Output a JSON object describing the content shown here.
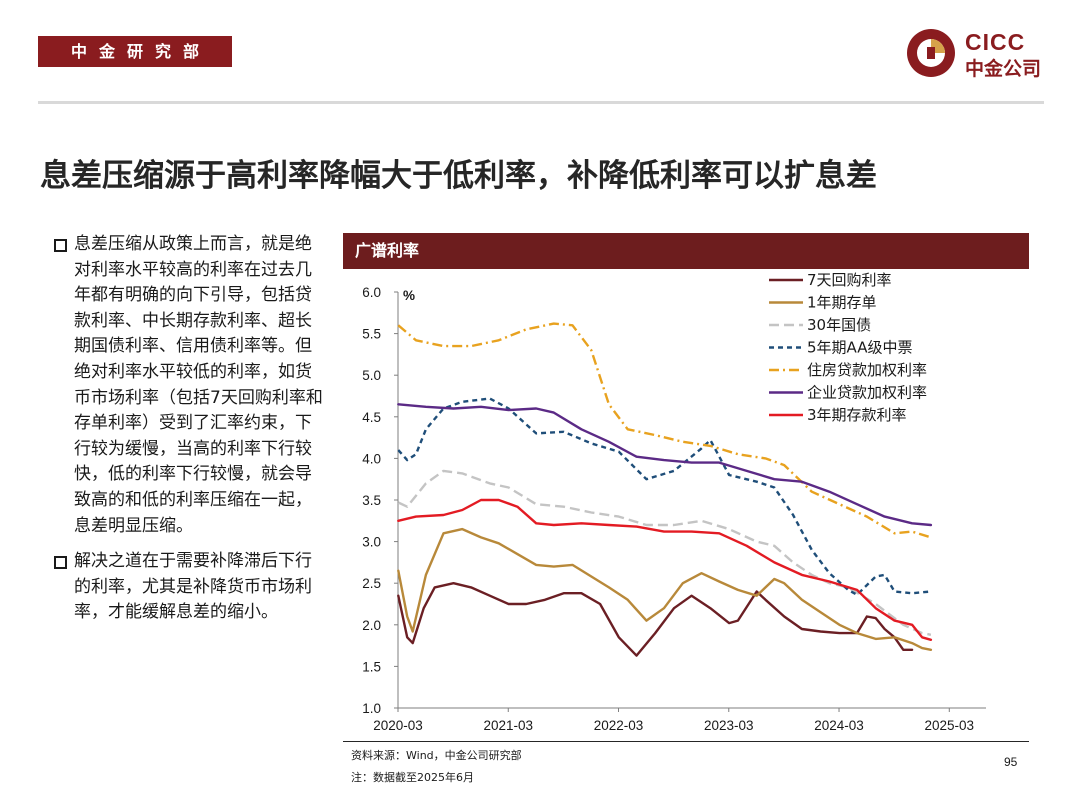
{
  "header": {
    "dept": "中金研究部",
    "logo_en": "CICC",
    "logo_cn": "中金公司",
    "logo_colors": {
      "primary": "#8a1c1f",
      "accent": "#d6a24a"
    }
  },
  "title": "息差压缩源于高利率降幅大于低利率，补降低利率可以扩息差",
  "bullets": [
    "息差压缩从政策上而言，就是绝对利率水平较高的利率在过去几年都有明确的向下引导，包括贷款利率、中长期存款利率、超长期国债利率、信用债利率等。但绝对利率水平较低的利率，如货币市场利率（包括7天回购利率和存单利率）受到了汇率约束，下行较为缓慢，当高的利率下行较快，低的利率下行较慢，就会导致高的和低的利率压缩在一起，息差明显压缩。",
    "解决之道在于需要补降滞后下行的利率，尤其是补降货币市场利率，才能缓解息差的缩小。"
  ],
  "chart_header": "广谱利率",
  "chart_data": {
    "type": "line",
    "ylabel": "%",
    "ylim": [
      1.0,
      6.0
    ],
    "yticks": [
      "1.0",
      "1.5",
      "2.0",
      "2.5",
      "3.0",
      "3.5",
      "4.0",
      "4.5",
      "5.0",
      "5.5",
      "6.0"
    ],
    "xlim": [
      2020.167,
      2025.5
    ],
    "xticks": [
      {
        "x": 2020.167,
        "label": "2020-03"
      },
      {
        "x": 2021.167,
        "label": "2021-03"
      },
      {
        "x": 2022.167,
        "label": "2022-03"
      },
      {
        "x": 2023.167,
        "label": "2023-03"
      },
      {
        "x": 2024.167,
        "label": "2024-03"
      },
      {
        "x": 2025.167,
        "label": "2025-03"
      }
    ],
    "legend_position": "top-right",
    "series": [
      {
        "name": "7天回购利率",
        "color": "#6b1f24",
        "dash": "solid",
        "points": [
          [
            2020.17,
            2.35
          ],
          [
            2020.25,
            1.85
          ],
          [
            2020.3,
            1.78
          ],
          [
            2020.4,
            2.2
          ],
          [
            2020.5,
            2.45
          ],
          [
            2020.67,
            2.5
          ],
          [
            2020.83,
            2.45
          ],
          [
            2021.0,
            2.35
          ],
          [
            2021.17,
            2.25
          ],
          [
            2021.33,
            2.25
          ],
          [
            2021.5,
            2.3
          ],
          [
            2021.67,
            2.38
          ],
          [
            2021.83,
            2.38
          ],
          [
            2022.0,
            2.25
          ],
          [
            2022.17,
            1.85
          ],
          [
            2022.33,
            1.63
          ],
          [
            2022.5,
            1.9
          ],
          [
            2022.67,
            2.2
          ],
          [
            2022.83,
            2.35
          ],
          [
            2023.0,
            2.2
          ],
          [
            2023.17,
            2.02
          ],
          [
            2023.25,
            2.05
          ],
          [
            2023.42,
            2.4
          ],
          [
            2023.5,
            2.3
          ],
          [
            2023.67,
            2.1
          ],
          [
            2023.83,
            1.95
          ],
          [
            2024.0,
            1.92
          ],
          [
            2024.17,
            1.9
          ],
          [
            2024.33,
            1.9
          ],
          [
            2024.42,
            2.1
          ],
          [
            2024.5,
            2.08
          ],
          [
            2024.58,
            1.95
          ],
          [
            2024.67,
            1.85
          ],
          [
            2024.75,
            1.7
          ],
          [
            2024.83,
            1.7
          ]
        ]
      },
      {
        "name": "1年期存单",
        "color": "#b8893a",
        "dash": "solid",
        "points": [
          [
            2020.17,
            2.65
          ],
          [
            2020.25,
            2.1
          ],
          [
            2020.3,
            1.92
          ],
          [
            2020.42,
            2.6
          ],
          [
            2020.58,
            3.1
          ],
          [
            2020.75,
            3.15
          ],
          [
            2020.92,
            3.05
          ],
          [
            2021.08,
            2.98
          ],
          [
            2021.25,
            2.85
          ],
          [
            2021.42,
            2.72
          ],
          [
            2021.58,
            2.7
          ],
          [
            2021.75,
            2.72
          ],
          [
            2021.92,
            2.58
          ],
          [
            2022.08,
            2.45
          ],
          [
            2022.25,
            2.3
          ],
          [
            2022.42,
            2.05
          ],
          [
            2022.58,
            2.2
          ],
          [
            2022.75,
            2.5
          ],
          [
            2022.92,
            2.62
          ],
          [
            2023.08,
            2.52
          ],
          [
            2023.25,
            2.42
          ],
          [
            2023.42,
            2.35
          ],
          [
            2023.58,
            2.55
          ],
          [
            2023.67,
            2.5
          ],
          [
            2023.83,
            2.3
          ],
          [
            2024.0,
            2.15
          ],
          [
            2024.17,
            2.0
          ],
          [
            2024.33,
            1.9
          ],
          [
            2024.5,
            1.83
          ],
          [
            2024.67,
            1.85
          ],
          [
            2024.83,
            1.78
          ],
          [
            2024.92,
            1.72
          ],
          [
            2025.0,
            1.7
          ]
        ]
      },
      {
        "name": "30年国债",
        "color": "#c4c4c4",
        "dash": "10,5",
        "points": [
          [
            2020.17,
            3.47
          ],
          [
            2020.25,
            3.42
          ],
          [
            2020.42,
            3.7
          ],
          [
            2020.58,
            3.85
          ],
          [
            2020.75,
            3.82
          ],
          [
            2021.0,
            3.7
          ],
          [
            2021.17,
            3.65
          ],
          [
            2021.42,
            3.45
          ],
          [
            2021.67,
            3.42
          ],
          [
            2021.92,
            3.35
          ],
          [
            2022.17,
            3.3
          ],
          [
            2022.42,
            3.2
          ],
          [
            2022.67,
            3.2
          ],
          [
            2022.92,
            3.25
          ],
          [
            2023.17,
            3.15
          ],
          [
            2023.42,
            3.0
          ],
          [
            2023.58,
            2.95
          ],
          [
            2023.75,
            2.75
          ],
          [
            2023.92,
            2.6
          ],
          [
            2024.08,
            2.5
          ],
          [
            2024.25,
            2.45
          ],
          [
            2024.5,
            2.25
          ],
          [
            2024.75,
            2.0
          ],
          [
            2024.92,
            1.9
          ],
          [
            2025.0,
            1.88
          ]
        ]
      },
      {
        "name": "5年期AA级中票",
        "color": "#1f4e79",
        "dash": "5,4",
        "points": [
          [
            2020.17,
            4.1
          ],
          [
            2020.25,
            3.98
          ],
          [
            2020.33,
            4.05
          ],
          [
            2020.42,
            4.35
          ],
          [
            2020.58,
            4.6
          ],
          [
            2020.75,
            4.68
          ],
          [
            2021.0,
            4.72
          ],
          [
            2021.17,
            4.6
          ],
          [
            2021.42,
            4.3
          ],
          [
            2021.67,
            4.32
          ],
          [
            2021.92,
            4.18
          ],
          [
            2022.17,
            4.08
          ],
          [
            2022.42,
            3.75
          ],
          [
            2022.67,
            3.85
          ],
          [
            2022.92,
            4.12
          ],
          [
            2023.0,
            4.22
          ],
          [
            2023.17,
            3.8
          ],
          [
            2023.42,
            3.72
          ],
          [
            2023.58,
            3.65
          ],
          [
            2023.75,
            3.32
          ],
          [
            2023.92,
            2.9
          ],
          [
            2024.08,
            2.62
          ],
          [
            2024.25,
            2.42
          ],
          [
            2024.33,
            2.36
          ],
          [
            2024.5,
            2.58
          ],
          [
            2024.58,
            2.6
          ],
          [
            2024.67,
            2.4
          ],
          [
            2024.83,
            2.38
          ],
          [
            2025.0,
            2.4
          ]
        ]
      },
      {
        "name": "住房贷款加权利率",
        "color": "#e8a21f",
        "dash": "10,4,2,4",
        "points": [
          [
            2020.17,
            5.6
          ],
          [
            2020.33,
            5.42
          ],
          [
            2020.58,
            5.35
          ],
          [
            2020.83,
            5.35
          ],
          [
            2021.08,
            5.42
          ],
          [
            2021.33,
            5.55
          ],
          [
            2021.58,
            5.62
          ],
          [
            2021.75,
            5.6
          ],
          [
            2021.92,
            5.3
          ],
          [
            2022.08,
            4.65
          ],
          [
            2022.25,
            4.35
          ],
          [
            2022.5,
            4.28
          ],
          [
            2022.75,
            4.2
          ],
          [
            2023.0,
            4.15
          ],
          [
            2023.25,
            4.05
          ],
          [
            2023.5,
            4.0
          ],
          [
            2023.67,
            3.92
          ],
          [
            2023.92,
            3.6
          ],
          [
            2024.17,
            3.45
          ],
          [
            2024.42,
            3.3
          ],
          [
            2024.67,
            3.1
          ],
          [
            2024.83,
            3.12
          ],
          [
            2025.0,
            3.05
          ]
        ]
      },
      {
        "name": "企业贷款加权利率",
        "color": "#5b2a86",
        "dash": "solid",
        "points": [
          [
            2020.17,
            4.65
          ],
          [
            2020.42,
            4.62
          ],
          [
            2020.67,
            4.6
          ],
          [
            2020.92,
            4.62
          ],
          [
            2021.17,
            4.58
          ],
          [
            2021.42,
            4.6
          ],
          [
            2021.58,
            4.55
          ],
          [
            2021.83,
            4.35
          ],
          [
            2022.08,
            4.2
          ],
          [
            2022.33,
            4.02
          ],
          [
            2022.58,
            3.98
          ],
          [
            2022.83,
            3.95
          ],
          [
            2023.08,
            3.95
          ],
          [
            2023.33,
            3.85
          ],
          [
            2023.58,
            3.75
          ],
          [
            2023.83,
            3.72
          ],
          [
            2024.08,
            3.6
          ],
          [
            2024.33,
            3.45
          ],
          [
            2024.58,
            3.3
          ],
          [
            2024.83,
            3.22
          ],
          [
            2025.0,
            3.2
          ]
        ]
      },
      {
        "name": "3年期存款利率",
        "color": "#e31b23",
        "dash": "solid",
        "points": [
          [
            2020.17,
            3.25
          ],
          [
            2020.33,
            3.3
          ],
          [
            2020.58,
            3.32
          ],
          [
            2020.75,
            3.38
          ],
          [
            2020.92,
            3.5
          ],
          [
            2021.08,
            3.5
          ],
          [
            2021.25,
            3.42
          ],
          [
            2021.42,
            3.22
          ],
          [
            2021.58,
            3.2
          ],
          [
            2021.83,
            3.22
          ],
          [
            2022.08,
            3.2
          ],
          [
            2022.33,
            3.18
          ],
          [
            2022.58,
            3.12
          ],
          [
            2022.83,
            3.12
          ],
          [
            2023.08,
            3.1
          ],
          [
            2023.33,
            2.95
          ],
          [
            2023.58,
            2.75
          ],
          [
            2023.83,
            2.6
          ],
          [
            2024.08,
            2.52
          ],
          [
            2024.33,
            2.42
          ],
          [
            2024.5,
            2.2
          ],
          [
            2024.67,
            2.05
          ],
          [
            2024.83,
            2.0
          ],
          [
            2024.92,
            1.85
          ],
          [
            2025.0,
            1.82
          ]
        ]
      }
    ]
  },
  "source": "资料来源：Wind，中金公司研究部",
  "note": "注：数据截至2025年6月",
  "page_number": "95"
}
